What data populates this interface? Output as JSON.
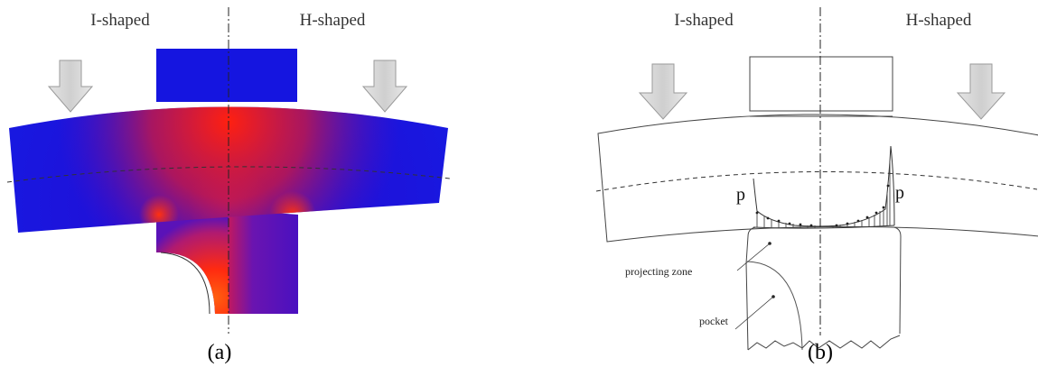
{
  "panel_a": {
    "header_left": "I-shaped",
    "header_right": "H-shaped",
    "caption": "(a)",
    "colors": {
      "low": "#1111dd",
      "high": "#ff2a10",
      "mid": "#8a1a9a"
    }
  },
  "panel_b": {
    "header_left": "I-shaped",
    "header_right": "H-shaped",
    "caption": "(b)",
    "pressure_label_left": "p",
    "pressure_label_right": "p",
    "projecting_zone_label": "projecting zone",
    "pocket_label": "pocket"
  },
  "icons": {
    "load_arrow": "down-arrow-icon"
  }
}
